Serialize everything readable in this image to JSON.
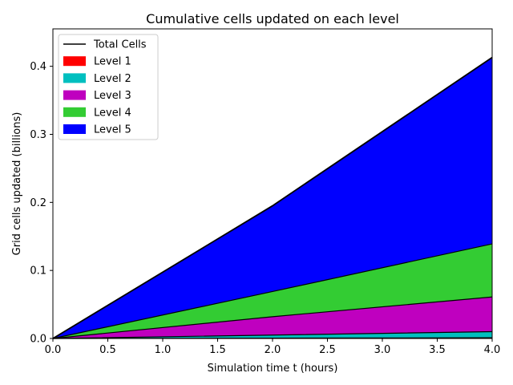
{
  "chart_data": {
    "type": "area",
    "title": "Cumulative cells updated on each level",
    "xlabel": "Simulation time t (hours)",
    "ylabel": "Grid cells updated (billions)",
    "xlim": [
      0,
      4
    ],
    "ylim": [
      0,
      0.455
    ],
    "xticks": [
      0,
      0.5,
      1,
      1.5,
      2,
      2.5,
      3,
      3.5,
      4
    ],
    "xtick_labels": [
      "0.0",
      "0.5",
      "1.0",
      "1.5",
      "2.0",
      "2.5",
      "3.0",
      "3.5",
      "4.0"
    ],
    "yticks": [
      0,
      0.1,
      0.2,
      0.3,
      0.4
    ],
    "ytick_labels": [
      "0.0",
      "0.1",
      "0.2",
      "0.3",
      "0.4"
    ],
    "grid": false,
    "legend_position": "top-left",
    "x": [
      0,
      2,
      4
    ],
    "stacked": true,
    "total": {
      "name": "Total Cells",
      "color": "#000000",
      "values": [
        0,
        0.195,
        0.413
      ]
    },
    "series": [
      {
        "name": "Level 1",
        "color": "#ff0000",
        "values": [
          0,
          0.0005,
          0.001
        ]
      },
      {
        "name": "Level 2",
        "color": "#00bfbf",
        "values": [
          0,
          0.0045,
          0.009
        ]
      },
      {
        "name": "Level 3",
        "color": "#bf00bf",
        "values": [
          0,
          0.027,
          0.051
        ]
      },
      {
        "name": "Level 4",
        "color": "#33cc33",
        "values": [
          0,
          0.037,
          0.078
        ]
      },
      {
        "name": "Level 5",
        "color": "#0000ff",
        "values": [
          0,
          0.126,
          0.274
        ]
      }
    ]
  }
}
